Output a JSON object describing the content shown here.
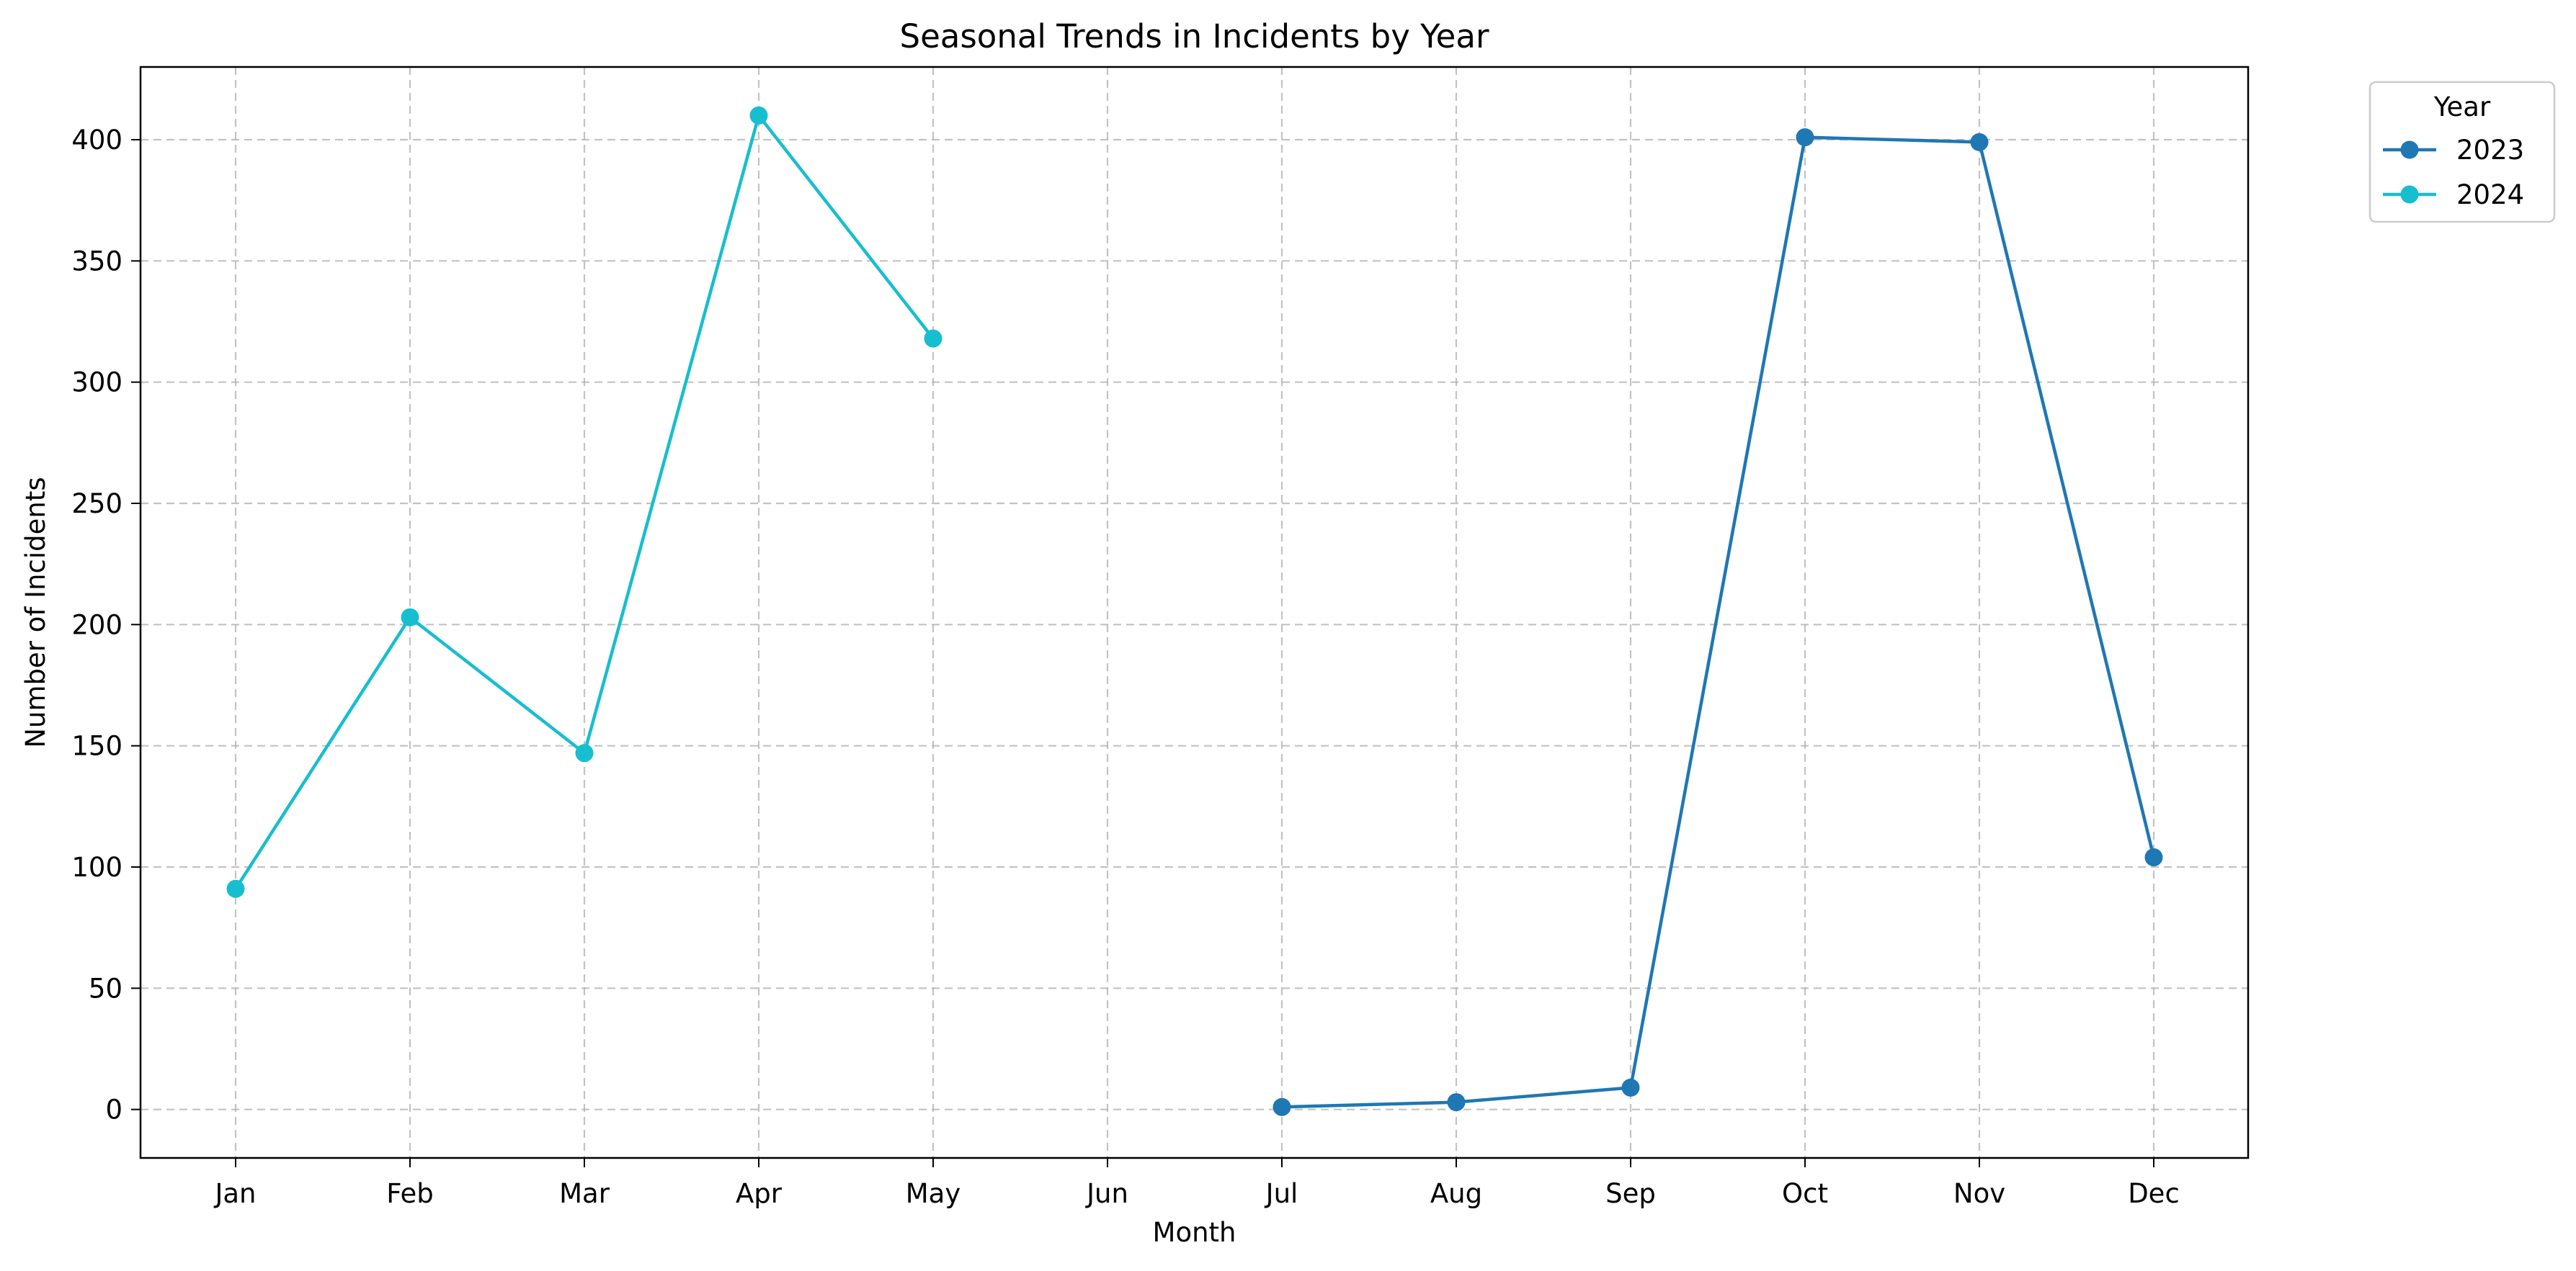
{
  "chart_data": {
    "type": "line",
    "title": "Seasonal Trends in Incidents by Year",
    "xlabel": "Month",
    "ylabel": "Number of Incidents",
    "categories": [
      "Jan",
      "Feb",
      "Mar",
      "Apr",
      "May",
      "Jun",
      "Jul",
      "Aug",
      "Sep",
      "Oct",
      "Nov",
      "Dec"
    ],
    "ylim": [
      -20,
      430
    ],
    "yticks": [
      0,
      50,
      100,
      150,
      200,
      250,
      300,
      350,
      400
    ],
    "grid": true,
    "legend": {
      "title": "Year",
      "placement": "outside-top-right"
    },
    "series": [
      {
        "name": "2023",
        "color": "#1f77b4",
        "values": [
          null,
          null,
          null,
          null,
          null,
          null,
          1,
          3,
          9,
          401,
          399,
          104
        ]
      },
      {
        "name": "2024",
        "color": "#17becf",
        "values": [
          91,
          203,
          147,
          410,
          318,
          null,
          null,
          null,
          null,
          null,
          null,
          null
        ]
      }
    ]
  }
}
